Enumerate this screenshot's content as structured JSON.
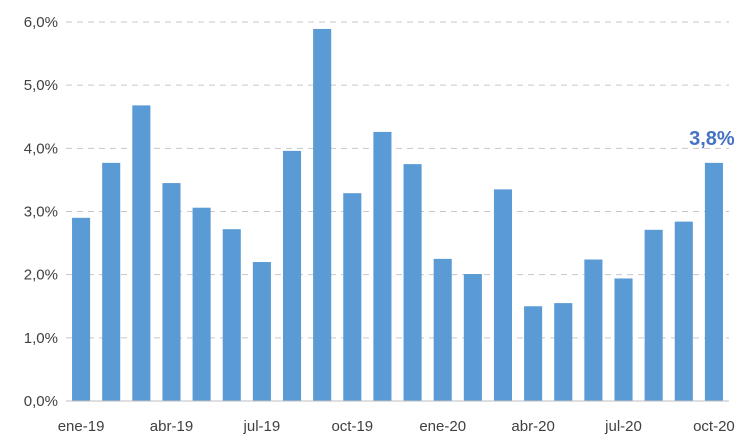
{
  "chart_data": {
    "type": "bar",
    "title": "",
    "xlabel": "",
    "ylabel": "",
    "categories": [
      "ene-19",
      "feb-19",
      "mar-19",
      "abr-19",
      "may-19",
      "jun-19",
      "jul-19",
      "ago-19",
      "sep-19",
      "oct-19",
      "nov-19",
      "dic-19",
      "ene-20",
      "feb-20",
      "mar-20",
      "abr-20",
      "may-20",
      "jun-20",
      "jul-20",
      "ago-20",
      "sep-20",
      "oct-20"
    ],
    "values": [
      2.9,
      3.77,
      4.68,
      3.45,
      3.06,
      2.72,
      2.2,
      3.96,
      5.89,
      3.29,
      4.26,
      3.75,
      2.25,
      2.01,
      3.35,
      1.5,
      1.55,
      2.24,
      1.94,
      2.71,
      2.84,
      3.77
    ],
    "x_tick_labels": [
      {
        "index": 0,
        "text": "ene-19"
      },
      {
        "index": 3,
        "text": "abr-19"
      },
      {
        "index": 6,
        "text": "jul-19"
      },
      {
        "index": 9,
        "text": "oct-19"
      },
      {
        "index": 12,
        "text": "ene-20"
      },
      {
        "index": 15,
        "text": "abr-20"
      },
      {
        "index": 18,
        "text": "jul-20"
      },
      {
        "index": 21,
        "text": "oct-20"
      }
    ],
    "y_ticks": [
      {
        "value": 0,
        "text": "0,0%"
      },
      {
        "value": 1,
        "text": "1,0%"
      },
      {
        "value": 2,
        "text": "2,0%"
      },
      {
        "value": 3,
        "text": "3,0%"
      },
      {
        "value": 4,
        "text": "4,0%"
      },
      {
        "value": 5,
        "text": "5,0%"
      },
      {
        "value": 6,
        "text": "6,0%"
      }
    ],
    "ylim": [
      0,
      6
    ],
    "grid": true,
    "legend": "none",
    "annotations": [
      {
        "index": 21,
        "text": "3,8%"
      }
    ],
    "colors": {
      "bar": "#5b9bd5",
      "annotation": "#4472c4",
      "grid": "#c8c8c8",
      "tick_text": "#404040"
    }
  }
}
